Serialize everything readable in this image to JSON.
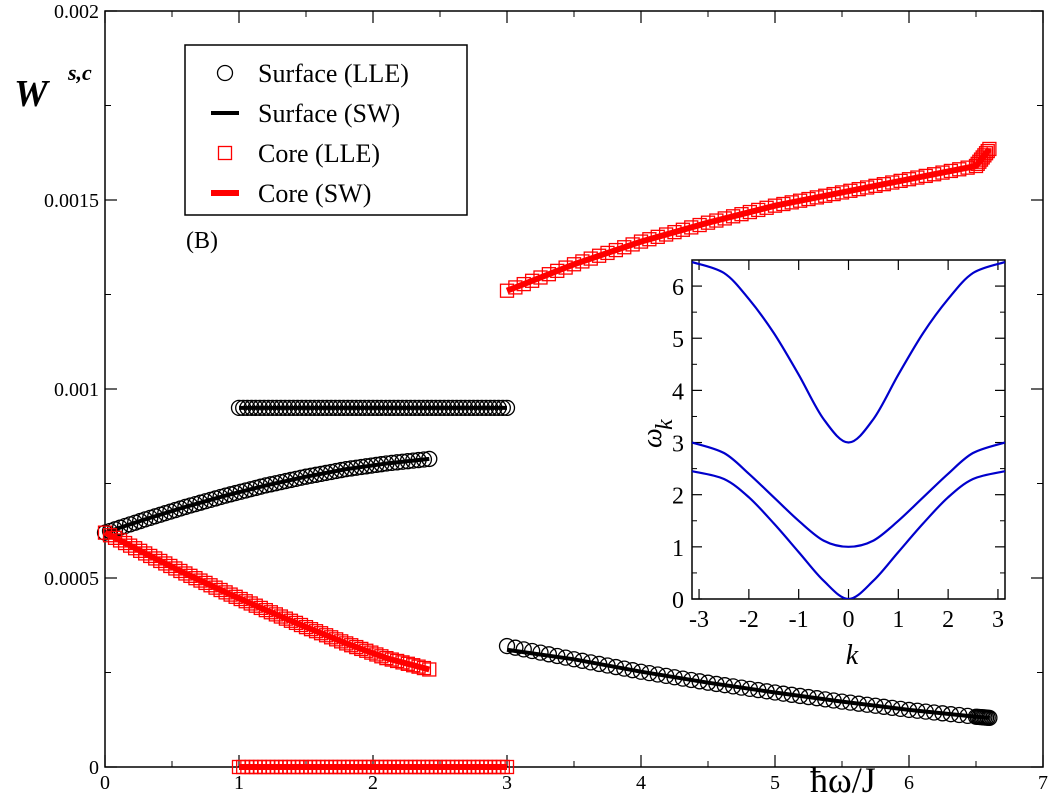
{
  "chart_data": [
    {
      "type": "scatter",
      "title": "",
      "panel_label": "(B)",
      "ylabel": "W",
      "ylabel_superscript": "s,c",
      "xlabel": "ħω/J",
      "xlim": [
        0,
        7
      ],
      "ylim": [
        0,
        0.002
      ],
      "x_ticks": [
        "0",
        "1",
        "2",
        "3",
        "4",
        "5",
        "6",
        "7"
      ],
      "y_ticks": [
        "0",
        "0.0005",
        "0.001",
        "0.0015",
        "0.002"
      ],
      "legend_position": "top-left",
      "grid": false,
      "legend": [
        {
          "label": "Surface (LLE)",
          "marker": "circle",
          "color": "#000000"
        },
        {
          "label": "Surface (SW)",
          "marker": "line",
          "color": "#000000"
        },
        {
          "label": "Core (LLE)",
          "marker": "square",
          "color": "#ff0000"
        },
        {
          "label": "Core (SW)",
          "marker": "line",
          "color": "#ff0000"
        }
      ],
      "series": [
        {
          "name": "Surface (LLE)",
          "marker": "circle",
          "color": "#000000",
          "segments": [
            {
              "x": [
                0.0,
                0.3,
                0.6,
                0.9,
                1.2,
                1.5,
                1.8,
                2.1,
                2.42
              ],
              "y": [
                0.00062,
                0.000655,
                0.000688,
                0.000718,
                0.000745,
                0.000768,
                0.000788,
                0.000803,
                0.000815
              ]
            },
            {
              "x": [
                1.0,
                1.25,
                1.5,
                1.75,
                2.0,
                2.25,
                2.5,
                2.75,
                3.0
              ],
              "y": [
                0.00095,
                0.00095,
                0.00095,
                0.00095,
                0.00095,
                0.00095,
                0.00095,
                0.00095,
                0.00095
              ]
            },
            {
              "x": [
                3.0,
                3.5,
                4.0,
                4.5,
                5.0,
                5.5,
                6.0,
                6.5,
                6.6
              ],
              "y": [
                0.00032,
                0.000285,
                0.000252,
                0.000223,
                0.000197,
                0.000173,
                0.000151,
                0.000133,
                0.00013
              ]
            }
          ]
        },
        {
          "name": "Surface (SW)",
          "marker": "line",
          "color": "#000000",
          "segments": [
            {
              "x": [
                0.0,
                0.3,
                0.6,
                0.9,
                1.2,
                1.5,
                1.8,
                2.1,
                2.42
              ],
              "y": [
                0.00062,
                0.000655,
                0.000688,
                0.000718,
                0.000745,
                0.000768,
                0.000788,
                0.000803,
                0.000815
              ]
            },
            {
              "x": [
                1.0,
                3.0
              ],
              "y": [
                0.00095,
                0.00095
              ]
            },
            {
              "x": [
                3.0,
                3.5,
                4.0,
                4.5,
                5.0,
                5.5,
                6.0,
                6.5,
                6.6
              ],
              "y": [
                0.00031,
                0.000285,
                0.000252,
                0.000223,
                0.000197,
                0.000173,
                0.000151,
                0.000133,
                0.00013
              ]
            }
          ]
        },
        {
          "name": "Core (LLE)",
          "marker": "square",
          "color": "#ff0000",
          "segments": [
            {
              "x": [
                0.0,
                0.3,
                0.6,
                0.9,
                1.2,
                1.5,
                1.8,
                2.1,
                2.42
              ],
              "y": [
                0.00062,
                0.000565,
                0.000512,
                0.000462,
                0.000415,
                0.00037,
                0.000327,
                0.000288,
                0.000258
              ]
            },
            {
              "x": [
                1.0,
                1.25,
                1.5,
                1.75,
                2.0,
                2.25,
                2.5,
                2.75,
                3.0
              ],
              "y": [
                0.0,
                0.0,
                0.0,
                0.0,
                0.0,
                0.0,
                0.0,
                0.0,
                0.0
              ]
            },
            {
              "x": [
                3.0,
                3.5,
                4.0,
                4.5,
                5.0,
                5.5,
                6.0,
                6.5,
                6.6
              ],
              "y": [
                0.00126,
                0.00133,
                0.00139,
                0.00144,
                0.001485,
                0.00152,
                0.001555,
                0.00159,
                0.001635
              ]
            }
          ]
        },
        {
          "name": "Core (SW)",
          "marker": "line",
          "color": "#ff0000",
          "segments": [
            {
              "x": [
                0.0,
                0.3,
                0.6,
                0.9,
                1.2,
                1.5,
                1.8,
                2.1,
                2.42
              ],
              "y": [
                0.00062,
                0.000565,
                0.000512,
                0.000462,
                0.000415,
                0.00037,
                0.000327,
                0.000288,
                0.000258
              ]
            },
            {
              "x": [
                1.0,
                3.0
              ],
              "y": [
                0.0,
                0.0
              ]
            },
            {
              "x": [
                3.0,
                3.5,
                4.0,
                4.5,
                5.0,
                5.5,
                6.0,
                6.5,
                6.6
              ],
              "y": [
                0.00126,
                0.00133,
                0.00139,
                0.00144,
                0.001485,
                0.00152,
                0.001555,
                0.00159,
                0.001635
              ]
            }
          ]
        }
      ]
    },
    {
      "type": "line",
      "title": "",
      "xlabel": "k",
      "ylabel": "ω",
      "ylabel_subscript": "k",
      "xlim": [
        -3.14159,
        3.14159
      ],
      "ylim": [
        0,
        6.5
      ],
      "x_ticks": [
        "-3",
        "-2",
        "-1",
        "0",
        "1",
        "2",
        "3"
      ],
      "y_ticks": [
        "0",
        "1",
        "2",
        "3",
        "4",
        "5",
        "6"
      ],
      "grid": false,
      "series": [
        {
          "color": "#0000cc",
          "x": [
            -3.14,
            -2.5,
            -2.0,
            -1.5,
            -1.0,
            -0.5,
            0.0,
            0.5,
            1.0,
            1.5,
            2.0,
            2.5,
            3.14
          ],
          "y": [
            6.46,
            6.25,
            5.75,
            5.1,
            4.3,
            3.45,
            3.0,
            3.45,
            4.3,
            5.1,
            5.75,
            6.25,
            6.46
          ]
        },
        {
          "color": "#0000cc",
          "x": [
            -3.14,
            -2.5,
            -2.0,
            -1.5,
            -1.0,
            -0.5,
            0.0,
            0.5,
            1.0,
            1.5,
            2.0,
            2.5,
            3.14
          ],
          "y": [
            3.0,
            2.8,
            2.4,
            1.95,
            1.5,
            1.12,
            1.0,
            1.12,
            1.5,
            1.95,
            2.4,
            2.8,
            3.0
          ]
        },
        {
          "color": "#0000cc",
          "x": [
            -3.14,
            -2.5,
            -2.0,
            -1.5,
            -1.0,
            -0.5,
            0.0,
            0.5,
            1.0,
            1.5,
            2.0,
            2.5,
            3.14
          ],
          "y": [
            2.45,
            2.3,
            1.95,
            1.45,
            0.9,
            0.35,
            0.0,
            0.35,
            0.9,
            1.45,
            1.95,
            2.3,
            2.45
          ]
        }
      ]
    }
  ]
}
